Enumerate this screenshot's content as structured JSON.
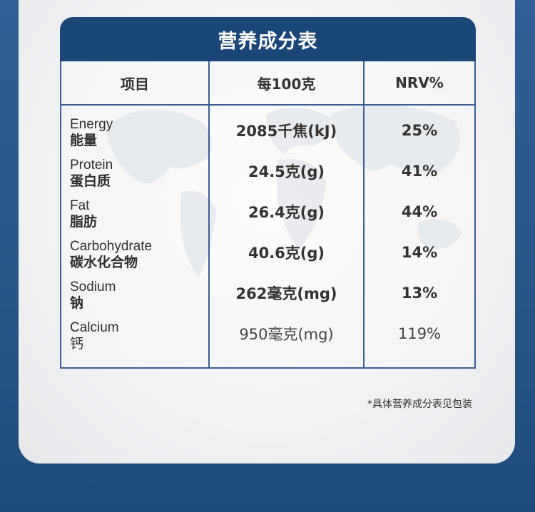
{
  "table": {
    "title": "营养成分表",
    "headers": [
      "项目",
      "每100克",
      "NRV%"
    ],
    "rows": [
      {
        "name_en": "Energy",
        "name_zh": "能量",
        "per100g": "2085千焦(kJ)",
        "nrv": "25%"
      },
      {
        "name_en": "Protein",
        "name_zh": "蛋白质",
        "per100g": "24.5克(g)",
        "nrv": "41%"
      },
      {
        "name_en": "Fat",
        "name_zh": "脂肪",
        "per100g": "26.4克(g)",
        "nrv": "44%"
      },
      {
        "name_en": "Carbohydrate",
        "name_zh": "碳水化合物",
        "per100g": "40.6克(g)",
        "nrv": "14%"
      },
      {
        "name_en": "Sodium",
        "name_zh": "钠",
        "per100g": "262毫克(mg)",
        "nrv": "13%"
      },
      {
        "name_en": "Calcium",
        "name_zh": "钙",
        "per100g": "950毫克(mg)",
        "nrv": "119%"
      }
    ]
  },
  "footnote": "*具体营养成分表见包装",
  "colors": {
    "background_blue": "#285788",
    "header_navy": "#1a4678",
    "border_blue": "#3a5f95",
    "card_white": "#f1f2f4"
  }
}
